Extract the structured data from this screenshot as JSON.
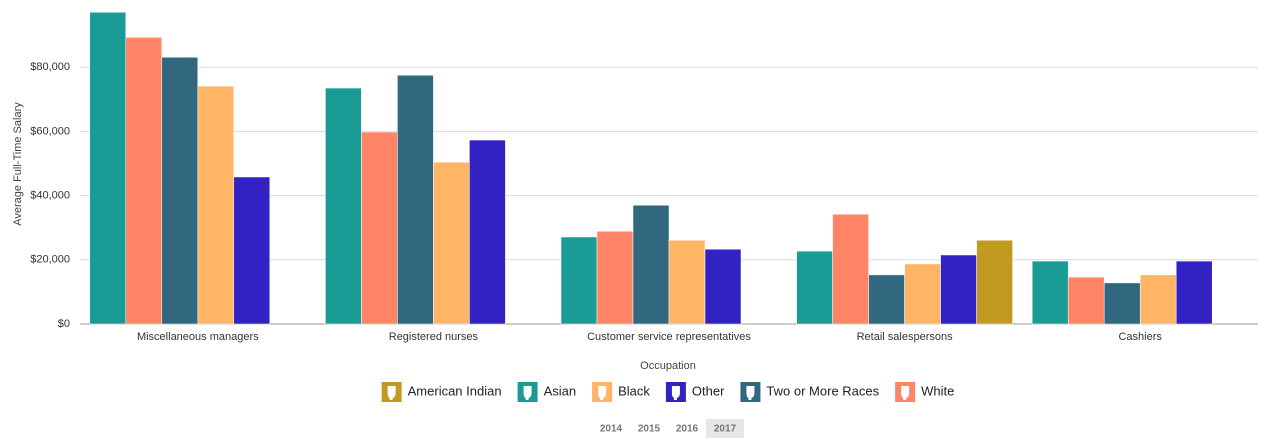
{
  "chart_data": {
    "type": "bar",
    "x_label": "Occupation",
    "y_label": "Average Full-Time Salary",
    "categories": [
      "Miscellaneous managers",
      "Registered nurses",
      "Customer service representatives",
      "Retail salespersons",
      "Cashiers"
    ],
    "series": [
      {
        "name": "Asian",
        "color": "#1a9b96",
        "values": [
          97100,
          73500,
          27100,
          22700,
          19600
        ]
      },
      {
        "name": "White",
        "color": "#ff8566",
        "values": [
          89300,
          59800,
          28900,
          34200,
          14600
        ]
      },
      {
        "name": "Two or More Races",
        "color": "#31687f",
        "values": [
          83100,
          77500,
          37000,
          15300,
          12800
        ]
      },
      {
        "name": "Black",
        "color": "#ffb466",
        "values": [
          74100,
          50400,
          26100,
          18700,
          15300
        ]
      },
      {
        "name": "Other",
        "color": "#3222c4",
        "values": [
          45800,
          57300,
          23300,
          21500,
          19600
        ]
      },
      {
        "name": "American Indian",
        "color": "#c19a1f",
        "values": [
          null,
          null,
          null,
          26100,
          null
        ]
      }
    ],
    "ylim": [
      0,
      100000
    ],
    "yticks": [
      {
        "value": 0,
        "label": "$0"
      },
      {
        "value": 20000,
        "label": "$20,000"
      },
      {
        "value": 40000,
        "label": "$40,000"
      },
      {
        "value": 60000,
        "label": "$60,000"
      },
      {
        "value": 80000,
        "label": "$80,000"
      }
    ],
    "grid": true
  },
  "year_selector": {
    "years": [
      "2014",
      "2015",
      "2016",
      "2017"
    ],
    "selected": "2017"
  }
}
